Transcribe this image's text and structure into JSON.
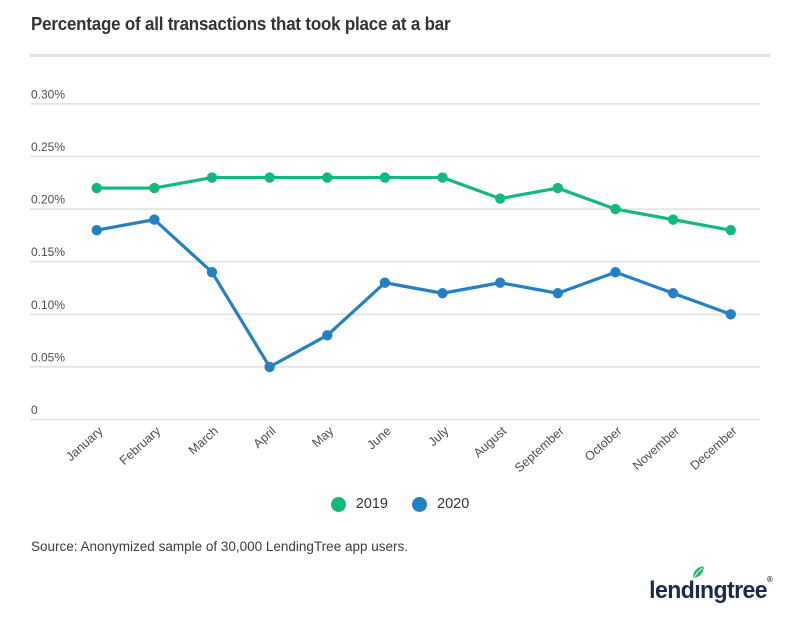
{
  "title": "Percentage of all transactions that took place at a bar",
  "source_note": "Source: Anonymized sample of 30,000 LendingTree app users.",
  "logo": {
    "pre": "lend",
    "i": "ı",
    "post": "ngtree",
    "registered": "®"
  },
  "legend": [
    {
      "label": "2019",
      "color": "#14b87a"
    },
    {
      "label": "2020",
      "color": "#2580c3"
    }
  ],
  "chart_data": {
    "type": "line",
    "title": "Percentage of all transactions that took place at a bar",
    "categories": [
      "January",
      "February",
      "March",
      "April",
      "May",
      "June",
      "July",
      "August",
      "September",
      "October",
      "November",
      "December"
    ],
    "series": [
      {
        "name": "2019",
        "color": "#14b87a",
        "values": [
          0.22,
          0.22,
          0.23,
          0.23,
          0.23,
          0.23,
          0.23,
          0.21,
          0.22,
          0.2,
          0.19,
          0.18
        ]
      },
      {
        "name": "2020",
        "color": "#2580c3",
        "values": [
          0.18,
          0.19,
          0.14,
          0.05,
          0.08,
          0.13,
          0.12,
          0.13,
          0.12,
          0.14,
          0.12,
          0.1
        ]
      }
    ],
    "xlabel": "",
    "ylabel": "",
    "ylim": [
      0,
      0.32
    ],
    "yticks": [
      {
        "value": 0.3,
        "label": "0.30%"
      },
      {
        "value": 0.25,
        "label": "0.25%"
      },
      {
        "value": 0.2,
        "label": "0.20%"
      },
      {
        "value": 0.15,
        "label": "0.15%"
      },
      {
        "value": 0.1,
        "label": "0.10%"
      },
      {
        "value": 0.05,
        "label": "0.05%"
      },
      {
        "value": 0,
        "label": "0"
      }
    ],
    "grid": true,
    "legend_position": "bottom"
  },
  "colors": {
    "grid": "#e0e0e0",
    "axis_text": "#4d4d4d",
    "title_text": "#333333",
    "source_text": "#3d3d3d",
    "logo_navy": "#1b2a4a",
    "leaf_green": "#2ab669",
    "background": "#ffffff"
  }
}
